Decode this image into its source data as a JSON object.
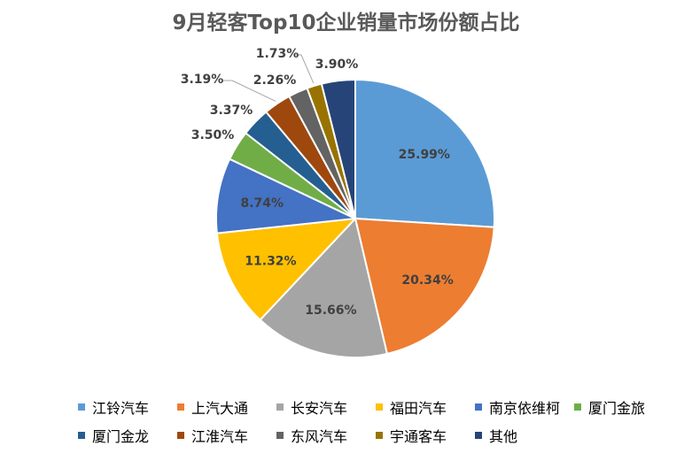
{
  "chart_data": {
    "type": "pie",
    "title": "9月轻客Top10企业销量市场份额占比",
    "categories": [
      "江铃汽车",
      "上汽大通",
      "长安汽车",
      "福田汽车",
      "南京依维柯",
      "厦门金旅",
      "厦门金龙",
      "江淮汽车",
      "东风汽车",
      "宇通客车",
      "其他"
    ],
    "values": [
      25.99,
      20.34,
      15.66,
      11.32,
      8.74,
      3.5,
      3.37,
      3.19,
      2.26,
      1.73,
      3.9
    ],
    "labels": [
      "25.99%",
      "20.34%",
      "15.66%",
      "11.32%",
      "8.74%",
      "3.50%",
      "3.37%",
      "3.19%",
      "2.26%",
      "1.73%",
      "3.90%"
    ],
    "colors": [
      "#5B9BD5",
      "#ED7D31",
      "#A5A5A5",
      "#FFC000",
      "#4472C4",
      "#70AD47",
      "#255E91",
      "#9E480E",
      "#636363",
      "#997300",
      "#264478"
    ],
    "legend": {
      "placement": "bottom",
      "row1": [
        "江铃汽车",
        "上汽大通",
        "长安汽车",
        "福田汽车",
        "南京依维柯",
        "厦门金旅"
      ],
      "row2": [
        "厦门金龙",
        "江淮汽车",
        "东风汽车",
        "宇通客车",
        "其他"
      ]
    }
  }
}
